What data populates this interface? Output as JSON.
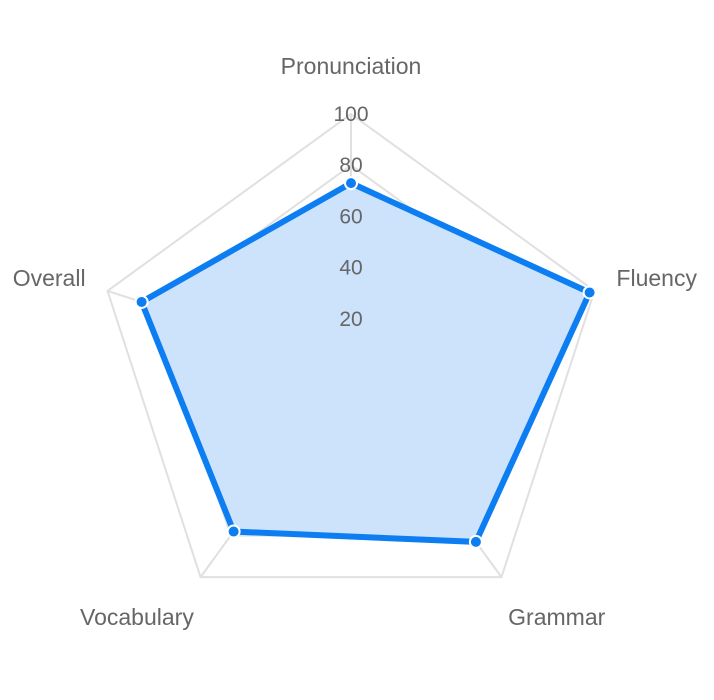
{
  "chart_data": {
    "type": "radar",
    "title": "",
    "axes": [
      "Pronunciation",
      "Fluency",
      "Grammar",
      "Vocabulary",
      "Overall"
    ],
    "series": [
      {
        "values": [
          73,
          98,
          83,
          78,
          86
        ]
      }
    ],
    "r_range": [
      0,
      100
    ],
    "ticks": [
      "20",
      "40",
      "60",
      "80",
      "100"
    ],
    "grid": true,
    "legend": "none"
  },
  "colors": {
    "series_stroke": "#0d7ef2",
    "series_fill": "#cde3fb",
    "grid": "#e0e0e0",
    "text": "#666666"
  }
}
